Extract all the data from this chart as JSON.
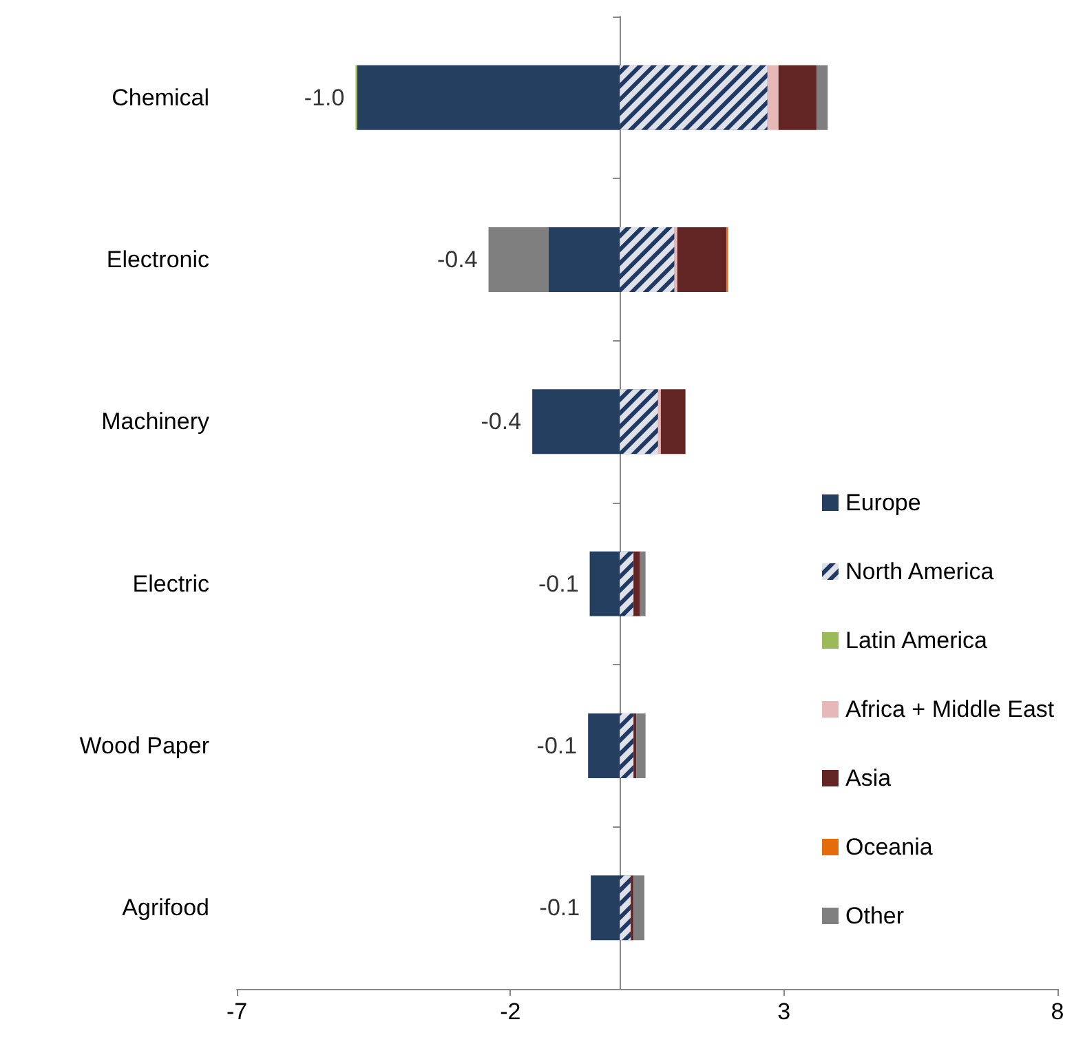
{
  "chart_data": {
    "type": "bar",
    "orientation": "horizontal",
    "stacked": true,
    "categories": [
      "Chemical",
      "Electronic",
      "Machinery",
      "Electric",
      "Wood Paper",
      "Agrifood"
    ],
    "series": [
      {
        "name": "Europe",
        "color": "#243f60",
        "values": [
          -4.8,
          -1.3,
          -1.6,
          -0.55,
          -0.58,
          -0.53
        ]
      },
      {
        "name": "North America",
        "color": "#1f3864",
        "values": [
          2.7,
          1.0,
          0.7,
          0.25,
          0.25,
          0.2
        ]
      },
      {
        "name": "Latin America",
        "color": "#9bbb59",
        "values": [
          -0.03,
          null,
          null,
          null,
          null,
          null
        ]
      },
      {
        "name": "Africa + Middle East",
        "color": "#e6b9b8",
        "values": [
          0.2,
          0.05,
          0.05,
          null,
          null,
          null
        ]
      },
      {
        "name": "Asia",
        "color": "#632523",
        "values": [
          0.7,
          0.9,
          0.45,
          0.12,
          0.05,
          0.05
        ]
      },
      {
        "name": "Oceania",
        "color": "#e46c0a",
        "values": [
          null,
          0.03,
          null,
          null,
          null,
          null
        ]
      },
      {
        "name": "Other",
        "color": "#7f7f7f",
        "values": [
          0.2,
          -1.1,
          null,
          0.1,
          0.17,
          0.2
        ]
      }
    ],
    "totals": [
      "-1.0",
      "-0.4",
      "-0.4",
      "-0.1",
      "-0.1",
      "-0.1"
    ],
    "xlim": [
      -7,
      8
    ],
    "xticks": [
      -7,
      -2,
      3,
      8
    ],
    "grid": false,
    "legend": "right"
  }
}
